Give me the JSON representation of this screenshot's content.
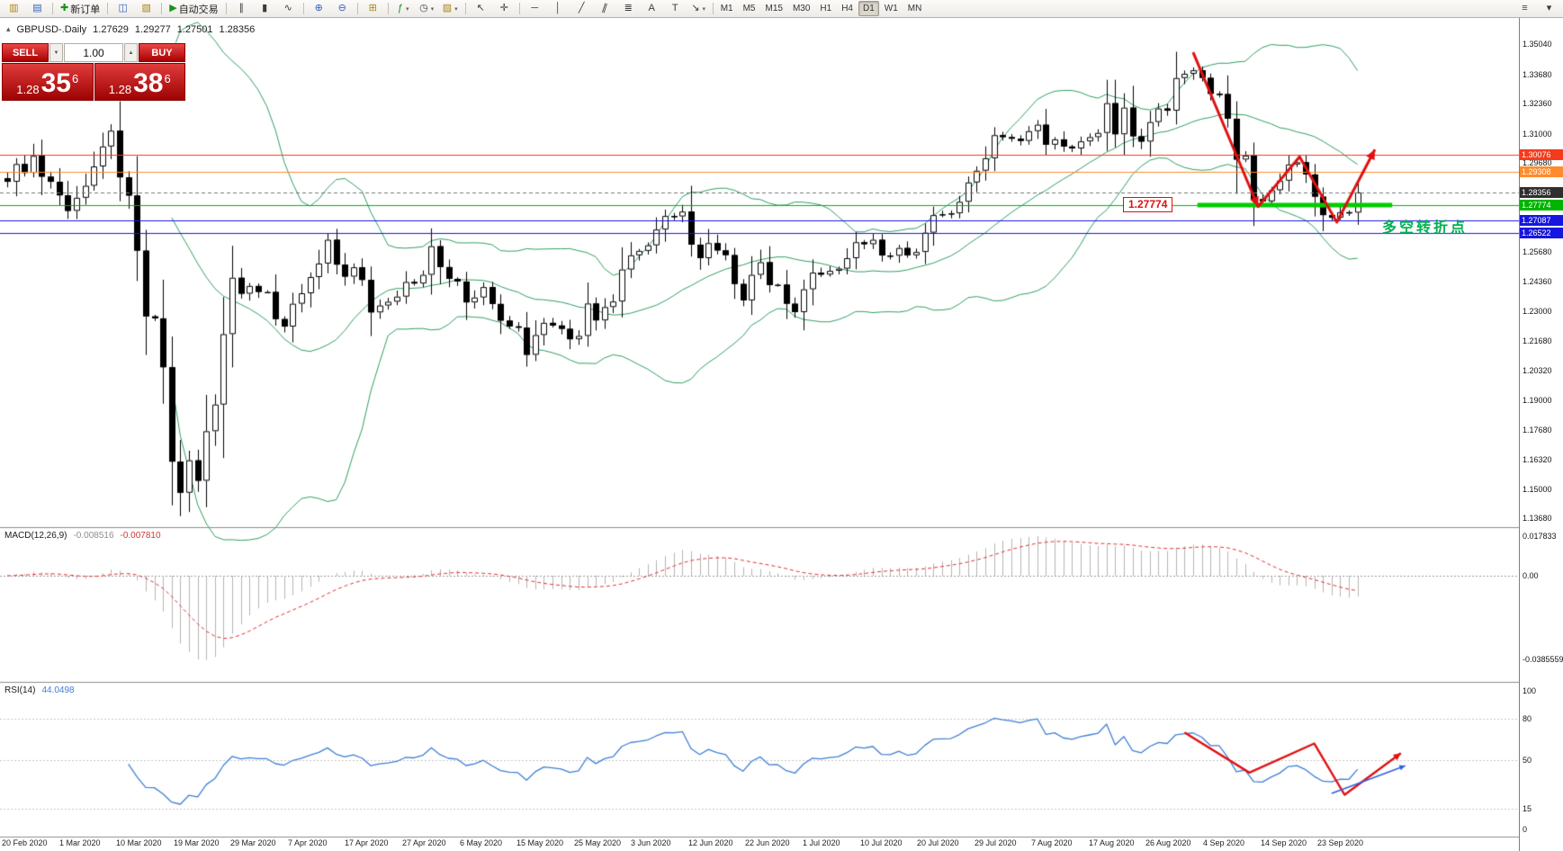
{
  "toolbar": {
    "groups": [
      {
        "items": [
          {
            "n": "charts-window",
            "g": "▥",
            "c": "c-gold"
          },
          {
            "n": "chart-list",
            "g": "▤",
            "c": "c-blue"
          }
        ]
      },
      {
        "items": [
          {
            "n": "new-order",
            "g": "✚",
            "c": "c-green",
            "label": "新订单"
          }
        ]
      },
      {
        "items": [
          {
            "n": "open-chart",
            "g": "◫",
            "c": "c-blue"
          },
          {
            "n": "profiles",
            "g": "▧",
            "c": "c-gold"
          }
        ]
      },
      {
        "items": [
          {
            "n": "autotrading",
            "g": "▶",
            "c": "c-green",
            "label": "自动交易"
          }
        ]
      },
      {
        "items": [
          {
            "n": "bar-chart-mode",
            "g": "∥"
          },
          {
            "n": "candlestick-mode",
            "g": "▮"
          },
          {
            "n": "line-chart-mode",
            "g": "∿"
          }
        ]
      },
      {
        "items": [
          {
            "n": "zoom-in",
            "g": "⊕",
            "c": "c-blue"
          },
          {
            "n": "zoom-out",
            "g": "⊖",
            "c": "c-blue"
          }
        ]
      },
      {
        "items": [
          {
            "n": "tile-windows",
            "g": "⊞",
            "c": "c-gold"
          }
        ]
      },
      {
        "items": [
          {
            "n": "indicators",
            "g": "ƒ",
            "c": "c-green",
            "caret": true
          },
          {
            "n": "periods",
            "g": "◷",
            "caret": true
          },
          {
            "n": "templates",
            "g": "▨",
            "c": "c-gold",
            "caret": true
          }
        ]
      },
      {
        "items": [
          {
            "n": "cursor",
            "g": "↖"
          },
          {
            "n": "crosshair",
            "g": "✛"
          }
        ]
      },
      {
        "items": [
          {
            "n": "horizontal-line-tool",
            "g": "─"
          },
          {
            "n": "vertical-line-tool",
            "g": "│"
          },
          {
            "n": "trendline-tool",
            "g": "╱"
          },
          {
            "n": "channel-tool",
            "g": "∥",
            "rot": true
          },
          {
            "n": "fibonacci-tool",
            "g": "≣"
          },
          {
            "n": "text-tool",
            "g": "A"
          },
          {
            "n": "label-tool",
            "g": "T"
          },
          {
            "n": "arrows-tool",
            "g": "↘",
            "caret": true
          }
        ]
      }
    ],
    "timeframes": [
      "M1",
      "M5",
      "M15",
      "M30",
      "H1",
      "H4",
      "D1",
      "W1",
      "MN"
    ],
    "active_timeframe": "D1",
    "right_items": [
      {
        "n": "window-list",
        "g": "≡"
      },
      {
        "n": "more-options",
        "g": "▾"
      }
    ]
  },
  "header": {
    "collapse": "▴",
    "symbol": "GBPUSD-.Daily",
    "open": "1.27629",
    "high": "1.29277",
    "low": "1.27501",
    "close": "1.28356"
  },
  "trade_panel": {
    "sell_label": "SELL",
    "buy_label": "BUY",
    "volume": "1.00",
    "step_down": "▼",
    "step_up": "▲",
    "bid": {
      "prefix": "1.28",
      "big": "35",
      "sup": "6"
    },
    "ask": {
      "prefix": "1.28",
      "big": "38",
      "sup": "6"
    }
  },
  "chart_data": {
    "type": "candlestick",
    "title": "GBPUSD- Daily",
    "open_first": 1.29,
    "closes": [
      1.2884,
      1.2964,
      1.2924,
      1.3001,
      1.2907,
      1.2884,
      1.2823,
      1.2753,
      1.2812,
      1.2866,
      1.2953,
      1.3043,
      1.3114,
      1.2904,
      1.2822,
      1.2574,
      1.2278,
      1.2269,
      1.2049,
      1.1624,
      1.1484,
      1.163,
      1.1538,
      1.1761,
      1.1881,
      1.2198,
      1.2452,
      1.238,
      1.2415,
      1.2388,
      1.2388,
      1.2266,
      1.2232,
      1.2335,
      1.2382,
      1.2455,
      1.2516,
      1.2623,
      1.2511,
      1.2457,
      1.2499,
      1.2442,
      1.2296,
      1.2327,
      1.2344,
      1.2367,
      1.2433,
      1.2426,
      1.2465,
      1.2594,
      1.25,
      1.2447,
      1.2435,
      1.2341,
      1.2363,
      1.241,
      1.2334,
      1.2259,
      1.2233,
      1.2227,
      1.2105,
      1.2194,
      1.2249,
      1.2237,
      1.2222,
      1.2175,
      1.219,
      1.2336,
      1.226,
      1.232,
      1.2345,
      1.2489,
      1.2553,
      1.2573,
      1.2598,
      1.2669,
      1.273,
      1.2728,
      1.275,
      1.2601,
      1.254,
      1.2608,
      1.2575,
      1.2554,
      1.2424,
      1.235,
      1.2465,
      1.2522,
      1.2419,
      1.2421,
      1.2335,
      1.2297,
      1.24,
      1.2475,
      1.2466,
      1.2483,
      1.2493,
      1.254,
      1.2612,
      1.2603,
      1.2623,
      1.2552,
      1.2551,
      1.2586,
      1.2553,
      1.2568,
      1.2655,
      1.2734,
      1.2738,
      1.2742,
      1.2794,
      1.2881,
      1.2934,
      1.299,
      1.3094,
      1.3085,
      1.3078,
      1.3068,
      1.3112,
      1.3141,
      1.3051,
      1.3075,
      1.3043,
      1.3034,
      1.3066,
      1.3085,
      1.3104,
      1.3238,
      1.3098,
      1.3218,
      1.3089,
      1.3065,
      1.3153,
      1.3214,
      1.3204,
      1.3351,
      1.337,
      1.3386,
      1.3352,
      1.328,
      1.3279,
      1.3168,
      1.2984,
      1.3002,
      1.2806,
      1.2796,
      1.2846,
      1.2889,
      1.2962,
      1.2972,
      1.2917,
      1.2817,
      1.2734,
      1.2722,
      1.2747,
      1.2745,
      1.2836
    ],
    "x_labels": [
      "20 Feb 2020",
      "1 Mar 2020",
      "10 Mar 2020",
      "19 Mar 2020",
      "29 Mar 2020",
      "7 Apr 2020",
      "17 Apr 2020",
      "27 Apr 2020",
      "6 May 2020",
      "15 May 2020",
      "25 May 2020",
      "3 Jun 2020",
      "12 Jun 2020",
      "22 Jun 2020",
      "1 Jul 2020",
      "10 Jul 2020",
      "20 Jul 2020",
      "29 Jul 2020",
      "7 Aug 2020",
      "17 Aug 2020",
      "26 Aug 2020",
      "4 Sep 2020",
      "14 Sep 2020",
      "23 Sep 2020"
    ],
    "y_axis_labels": [
      "1.35040",
      "1.33680",
      "1.32360",
      "1.31000",
      "1.29680",
      "1.25680",
      "1.24360",
      "1.23000",
      "1.21680",
      "1.20320",
      "1.19000",
      "1.17680",
      "1.16320",
      "1.15000",
      "1.13680"
    ],
    "ylim": {
      "top": 1.3603,
      "bottom": 1.1341
    },
    "hlines": [
      {
        "price": 1.30076,
        "label": "1.30076",
        "color": "#f53b1c",
        "badge": "#f53b1c"
      },
      {
        "price": 1.29308,
        "label": "1.29308",
        "color": "#ff8b2e",
        "badge": "#ff8b2e"
      },
      {
        "price": 1.28356,
        "label": "1.28356",
        "color": "#777777",
        "badge": "#2f2f2f",
        "style": "dashed"
      },
      {
        "price": 1.27774,
        "label": "1.27774",
        "color": "#00b400",
        "badge": "#00b400"
      },
      {
        "price": 1.27087,
        "label": "1.27087",
        "color": "#1616e0",
        "badge": "#1616e0"
      },
      {
        "price": 1.26522,
        "label": "1.26522",
        "color": "#1616e0",
        "badge": "#1616e0"
      }
    ],
    "indicators": {
      "bollinger": {
        "period": 20,
        "deviation": 2,
        "color": "#2f9e60"
      },
      "macd": {
        "name": "MACD(12,26,9)",
        "value1": "-0.008516",
        "value2": "-0.007810",
        "fast": 12,
        "slow": 26,
        "signal": 9,
        "axis_max": "0.017833",
        "axis_zero": "0.00",
        "axis_min": "-0.0385559",
        "hist_color": "#b4b4b4",
        "signal_color": "#e03030"
      },
      "rsi": {
        "name": "RSI(14)",
        "value": "44.0498",
        "period": 14,
        "levels": [
          80,
          50,
          15
        ],
        "axis_labels": [
          100,
          80,
          50,
          15,
          0
        ],
        "color": "#3f7fd6"
      }
    }
  },
  "annotations": {
    "support_label": "1.27774",
    "support_price": 1.27774,
    "support_segment": {
      "from_i": 137.5,
      "to_i": 160,
      "color": "#00cc00"
    },
    "turning_text": "多空转折点",
    "price_zigzag": {
      "color": "#e01010",
      "points": [
        {
          "i": 137,
          "p": 1.3467
        },
        {
          "i": 144.5,
          "p": 1.2772
        },
        {
          "i": 149.3,
          "p": 1.2997
        },
        {
          "i": 153.6,
          "p": 1.2702
        },
        {
          "i": 158,
          "p": 1.3029
        }
      ]
    },
    "rsi_zigzag": {
      "color": "#e01010",
      "points": [
        {
          "i": 136,
          "v": 70
        },
        {
          "i": 143.5,
          "v": 41
        },
        {
          "i": 151,
          "v": 62
        },
        {
          "i": 154.5,
          "v": 25
        },
        {
          "i": 161,
          "v": 55
        }
      ]
    },
    "rsi_arrow": {
      "color": "#3060e0",
      "points": [
        {
          "i": 153,
          "v": 26
        },
        {
          "i": 161.5,
          "v": 46
        }
      ]
    }
  }
}
